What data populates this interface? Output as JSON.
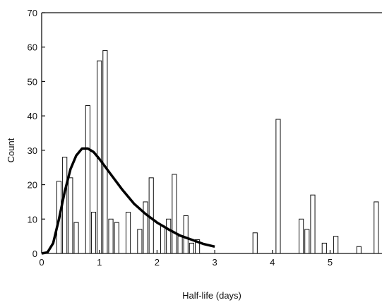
{
  "chart_data": {
    "type": "bar",
    "title": "",
    "xlabel": "Half-life (days)",
    "ylabel": "Count",
    "xlim": [
      0,
      5.9
    ],
    "ylim": [
      0,
      70
    ],
    "xticks": [
      0,
      1,
      2,
      3,
      4,
      5
    ],
    "yticks": [
      0,
      10,
      20,
      30,
      40,
      50,
      60,
      70
    ],
    "bin_width": 0.1,
    "bars": [
      {
        "x": 0.3,
        "value": 21
      },
      {
        "x": 0.4,
        "value": 28
      },
      {
        "x": 0.5,
        "value": 22
      },
      {
        "x": 0.6,
        "value": 9
      },
      {
        "x": 0.8,
        "value": 43
      },
      {
        "x": 0.9,
        "value": 12
      },
      {
        "x": 1.0,
        "value": 56
      },
      {
        "x": 1.1,
        "value": 59
      },
      {
        "x": 1.2,
        "value": 10
      },
      {
        "x": 1.3,
        "value": 9
      },
      {
        "x": 1.5,
        "value": 12
      },
      {
        "x": 1.7,
        "value": 7
      },
      {
        "x": 1.8,
        "value": 15
      },
      {
        "x": 1.9,
        "value": 22
      },
      {
        "x": 2.1,
        "value": 8
      },
      {
        "x": 2.2,
        "value": 10
      },
      {
        "x": 2.3,
        "value": 23
      },
      {
        "x": 2.4,
        "value": 5
      },
      {
        "x": 2.5,
        "value": 11
      },
      {
        "x": 2.6,
        "value": 3
      },
      {
        "x": 2.7,
        "value": 4
      },
      {
        "x": 3.7,
        "value": 6
      },
      {
        "x": 4.1,
        "value": 39
      },
      {
        "x": 4.5,
        "value": 10
      },
      {
        "x": 4.6,
        "value": 7
      },
      {
        "x": 4.7,
        "value": 17
      },
      {
        "x": 4.9,
        "value": 3
      },
      {
        "x": 5.1,
        "value": 5
      },
      {
        "x": 5.5,
        "value": 2
      },
      {
        "x": 5.8,
        "value": 15
      }
    ],
    "fit_curve": {
      "type": "line",
      "x": [
        0.0,
        0.1,
        0.2,
        0.3,
        0.4,
        0.5,
        0.6,
        0.7,
        0.8,
        0.9,
        1.0,
        1.2,
        1.4,
        1.6,
        1.8,
        2.0,
        2.2,
        2.4,
        2.6,
        2.8,
        3.0
      ],
      "y": [
        0,
        0.3,
        3,
        10,
        18,
        24.5,
        28.5,
        30.5,
        30.5,
        29.5,
        27.5,
        23,
        18.5,
        14.5,
        11.5,
        9,
        7,
        5.2,
        4,
        2.8,
        2
      ]
    }
  },
  "colors": {
    "bar_fill": "#ffffff",
    "stroke": "#111111",
    "curve": "#000000"
  }
}
